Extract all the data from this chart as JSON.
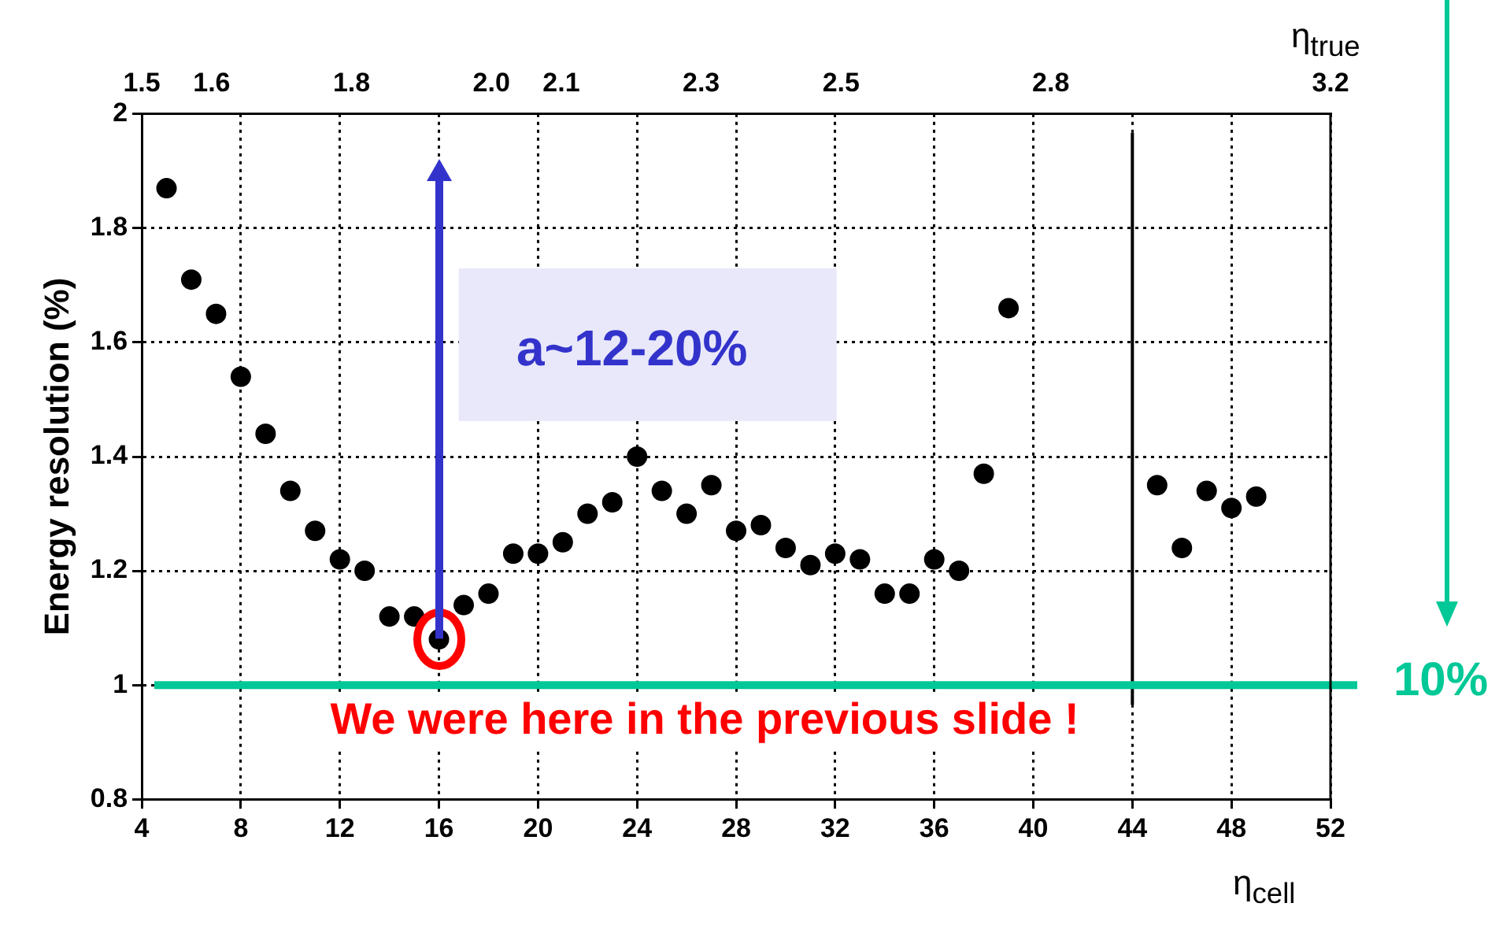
{
  "chart_data": {
    "type": "scatter",
    "ylabel": "Energy resolution (%)",
    "xlabel": "η$_{cell}$",
    "x2label": "η$_{true}$",
    "x": [
      5,
      6,
      7,
      8,
      9,
      10,
      11,
      12,
      13,
      14,
      15,
      16,
      17,
      18,
      19,
      20,
      21,
      22,
      23,
      24,
      25,
      26,
      27,
      28,
      29,
      30,
      31,
      32,
      33,
      34,
      35,
      36,
      37,
      38,
      39,
      45,
      46,
      47,
      48,
      49
    ],
    "series": [
      {
        "color": "#000000",
        "values": [
          1.87,
          1.71,
          1.65,
          1.54,
          1.44,
          1.34,
          1.27,
          1.22,
          1.2,
          1.12,
          1.12,
          1.08,
          1.14,
          1.16,
          1.23,
          1.23,
          1.25,
          1.3,
          1.32,
          1.4,
          1.34,
          1.3,
          1.35,
          1.27,
          1.28,
          1.24,
          1.21,
          1.23,
          1.22,
          1.16,
          1.16,
          1.22,
          1.2,
          1.37,
          1.66,
          1.35,
          1.24,
          1.34,
          1.31,
          1.33
        ]
      }
    ],
    "xlim": [
      4,
      52
    ],
    "xticks": [
      4,
      8,
      12,
      16,
      20,
      24,
      28,
      32,
      36,
      40,
      44,
      48,
      52
    ],
    "ylim": [
      0.8,
      2
    ],
    "yticks": [
      0.8,
      1,
      1.2,
      1.4,
      1.6,
      1.8,
      2
    ],
    "x2lim": [
      1.5,
      3.2
    ],
    "x2ticks": [
      1.5,
      1.6,
      1.8,
      {
        "value": 2,
        "label": "2.0"
      },
      2.1,
      2.3,
      2.5,
      2.8,
      3.2
    ],
    "ref_lines": [
      {
        "axis": "x",
        "value": 44,
        "color": "#000000",
        "line_style": "solid"
      },
      {
        "axis": "y",
        "value": 1,
        "color": "#00c896",
        "line_style": "solid"
      }
    ],
    "annotations": [
      "a~12-20%",
      "10%",
      {
        "text": "We were here in the previous slide !",
        "x": 16,
        "y": 1.08
      }
    ],
    "grid": true,
    "legend": false,
    "marker": "circle"
  }
}
